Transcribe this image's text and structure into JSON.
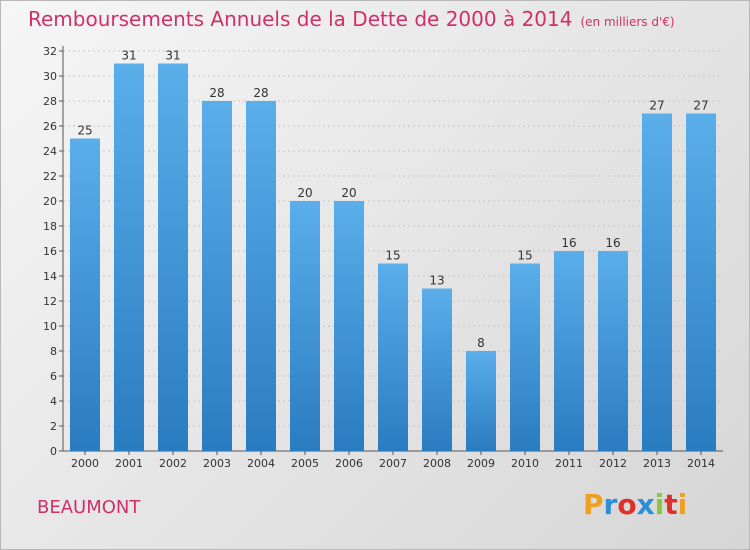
{
  "chart_data": {
    "type": "bar",
    "title": "Remboursements Annuels de la Dette de 2000 à 2014",
    "unit": "(en milliers d'€)",
    "categories": [
      "2000",
      "2001",
      "2002",
      "2003",
      "2004",
      "2005",
      "2006",
      "2007",
      "2008",
      "2009",
      "2010",
      "2011",
      "2012",
      "2013",
      "2014"
    ],
    "values": [
      25,
      31,
      31,
      28,
      28,
      20,
      20,
      15,
      13,
      8,
      15,
      16,
      16,
      27,
      27
    ],
    "ylim": [
      0,
      32
    ],
    "yticks": [
      0,
      2,
      4,
      6,
      8,
      10,
      12,
      14,
      16,
      18,
      20,
      22,
      24,
      26,
      28,
      30,
      32
    ],
    "grid": true,
    "xlabel": "",
    "ylabel": ""
  },
  "city": "BEAUMONT",
  "logo": {
    "letters": [
      "P",
      "r",
      "o",
      "x",
      "i",
      "t",
      "i"
    ],
    "colors": [
      "#f0a020",
      "#2a8fd6",
      "#e0302a",
      "#2a8fd6",
      "#8cc63e",
      "#e0302a",
      "#f0a020"
    ]
  },
  "colors": {
    "title": "#d0306a",
    "bar_top": "#5aaeea",
    "bar_bottom": "#2a7cc0"
  }
}
